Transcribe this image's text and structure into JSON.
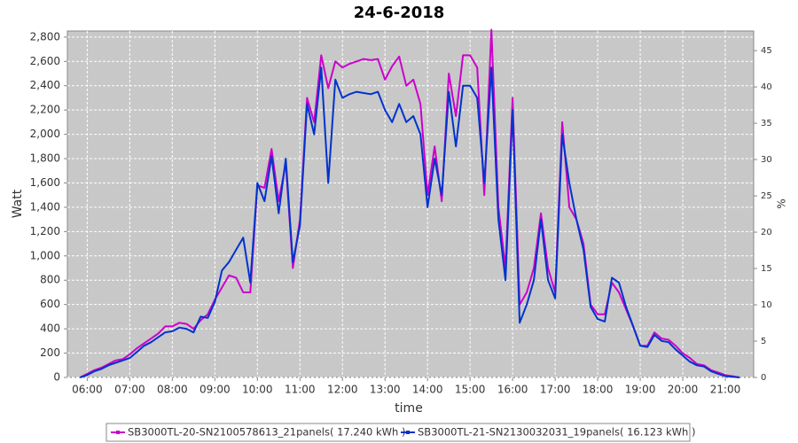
{
  "chart_data": {
    "type": "line",
    "title": "24-6-2018",
    "xlabel": "time",
    "ylabel": "Watt",
    "y2label": "%",
    "x": [
      "05:50",
      "06:00",
      "06:10",
      "06:20",
      "06:30",
      "06:40",
      "06:50",
      "07:00",
      "07:10",
      "07:20",
      "07:30",
      "07:40",
      "07:50",
      "08:00",
      "08:10",
      "08:20",
      "08:30",
      "08:40",
      "08:50",
      "09:00",
      "09:10",
      "09:20",
      "09:30",
      "09:40",
      "09:50",
      "10:00",
      "10:10",
      "10:20",
      "10:30",
      "10:40",
      "10:50",
      "11:00",
      "11:10",
      "11:20",
      "11:30",
      "11:40",
      "11:50",
      "12:00",
      "12:10",
      "12:20",
      "12:30",
      "12:40",
      "12:50",
      "13:00",
      "13:10",
      "13:20",
      "13:30",
      "13:40",
      "13:50",
      "14:00",
      "14:10",
      "14:20",
      "14:30",
      "14:40",
      "14:50",
      "15:00",
      "15:10",
      "15:20",
      "15:30",
      "15:40",
      "15:50",
      "16:00",
      "16:10",
      "16:20",
      "16:30",
      "16:40",
      "16:50",
      "17:00",
      "17:10",
      "17:20",
      "17:30",
      "17:40",
      "17:50",
      "18:00",
      "18:10",
      "18:20",
      "18:30",
      "18:40",
      "18:50",
      "19:00",
      "19:10",
      "19:20",
      "19:30",
      "19:40",
      "19:50",
      "20:00",
      "20:10",
      "20:20",
      "20:30",
      "20:40",
      "20:50",
      "21:00",
      "21:10",
      "21:20"
    ],
    "series": [
      {
        "name": "SB3000TL-20-SN2100578613_21panels( 17.240 kWh  )",
        "color": "#cc00cc",
        "values": [
          0,
          30,
          60,
          80,
          110,
          140,
          150,
          190,
          240,
          280,
          320,
          360,
          420,
          420,
          450,
          440,
          400,
          470,
          520,
          640,
          740,
          840,
          820,
          700,
          700,
          1580,
          1560,
          1880,
          1450,
          1760,
          900,
          1300,
          2300,
          2100,
          2650,
          2380,
          2600,
          2550,
          2580,
          2600,
          2620,
          2610,
          2620,
          2450,
          2560,
          2640,
          2400,
          2450,
          2250,
          1500,
          1900,
          1450,
          2500,
          2150,
          2650,
          2650,
          2550,
          1500,
          2860,
          1400,
          900,
          2300,
          600,
          700,
          900,
          1350,
          900,
          700,
          2100,
          1400,
          1300,
          1100,
          600,
          520,
          520,
          780,
          700,
          560,
          420,
          260,
          260,
          370,
          320,
          310,
          260,
          200,
          160,
          110,
          100,
          60,
          40,
          20,
          10,
          0
        ]
      },
      {
        "name": "SB3000TL-21-SN2130032031_19panels( 16.123 kWh  )",
        "color": "#0033cc",
        "values": [
          0,
          20,
          50,
          70,
          100,
          120,
          140,
          160,
          210,
          260,
          290,
          330,
          370,
          380,
          410,
          400,
          370,
          500,
          490,
          620,
          880,
          950,
          1050,
          1150,
          780,
          1600,
          1450,
          1820,
          1350,
          1800,
          950,
          1250,
          2250,
          2000,
          2550,
          1600,
          2450,
          2300,
          2330,
          2350,
          2340,
          2330,
          2350,
          2200,
          2100,
          2250,
          2100,
          2150,
          2000,
          1400,
          1800,
          1500,
          2350,
          1900,
          2400,
          2400,
          2300,
          1600,
          2550,
          1300,
          800,
          2200,
          450,
          600,
          800,
          1300,
          800,
          650,
          2000,
          1600,
          1300,
          1050,
          580,
          480,
          460,
          820,
          780,
          580,
          420,
          260,
          250,
          350,
          300,
          290,
          230,
          180,
          130,
          100,
          90,
          50,
          30,
          10,
          5,
          0
        ]
      }
    ],
    "xlim": [
      "05:32",
      "21:40"
    ],
    "xticks": [
      "06:00",
      "07:00",
      "08:00",
      "09:00",
      "10:00",
      "11:00",
      "12:00",
      "13:00",
      "14:00",
      "15:00",
      "16:00",
      "17:00",
      "18:00",
      "19:00",
      "20:00",
      "21:00"
    ],
    "ylim": [
      0,
      2850
    ],
    "yticks": [
      0,
      200,
      400,
      600,
      800,
      {
        "value": 1000,
        "label": "1,000"
      },
      {
        "value": 1200,
        "label": "1,200"
      },
      {
        "value": 1400,
        "label": "1,400"
      },
      {
        "value": 1600,
        "label": "1,600"
      },
      {
        "value": 1800,
        "label": "1,800"
      },
      {
        "value": 2000,
        "label": "2,000"
      },
      {
        "value": 2200,
        "label": "2,200"
      },
      {
        "value": 2400,
        "label": "2,400"
      },
      {
        "value": 2600,
        "label": "2,600"
      },
      {
        "value": 2800,
        "label": "2,800"
      }
    ],
    "y2lim": [
      0,
      47.7
    ],
    "y2ticks": [
      0,
      5,
      10,
      15,
      20,
      25,
      30,
      35,
      40,
      45
    ],
    "grid": true,
    "legend": "bottom"
  }
}
